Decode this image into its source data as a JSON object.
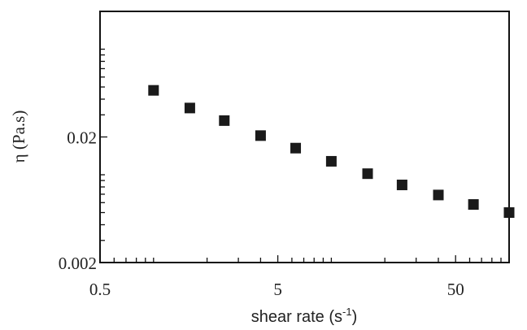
{
  "chart_data": {
    "type": "scatter",
    "xlabel": "shear rate (s",
    "xlabel_sup": "-1",
    "xlabel_close": ")",
    "ylabel": "η (Pa.s)",
    "x_scale": "log",
    "y_scale": "log",
    "xlim": [
      0.5,
      100
    ],
    "ylim": [
      0.002,
      0.2
    ],
    "x_ticks": [
      {
        "value": 0.5,
        "label": "0.5"
      },
      {
        "value": 5,
        "label": "5"
      },
      {
        "value": 50,
        "label": "50"
      }
    ],
    "y_ticks": [
      {
        "value": 0.002,
        "label": "0.002"
      },
      {
        "value": 0.02,
        "label": "0.02"
      }
    ],
    "grid": false,
    "marker": "filled-square",
    "marker_color": "#1a1a1a",
    "series": [
      {
        "x": [
          1.0,
          1.6,
          2.5,
          4.0,
          6.3,
          10,
          16,
          25,
          40,
          63,
          100
        ],
        "y": [
          0.047,
          0.034,
          0.027,
          0.0205,
          0.0163,
          0.0128,
          0.0102,
          0.0083,
          0.0069,
          0.0058,
          0.005
        ]
      }
    ]
  }
}
